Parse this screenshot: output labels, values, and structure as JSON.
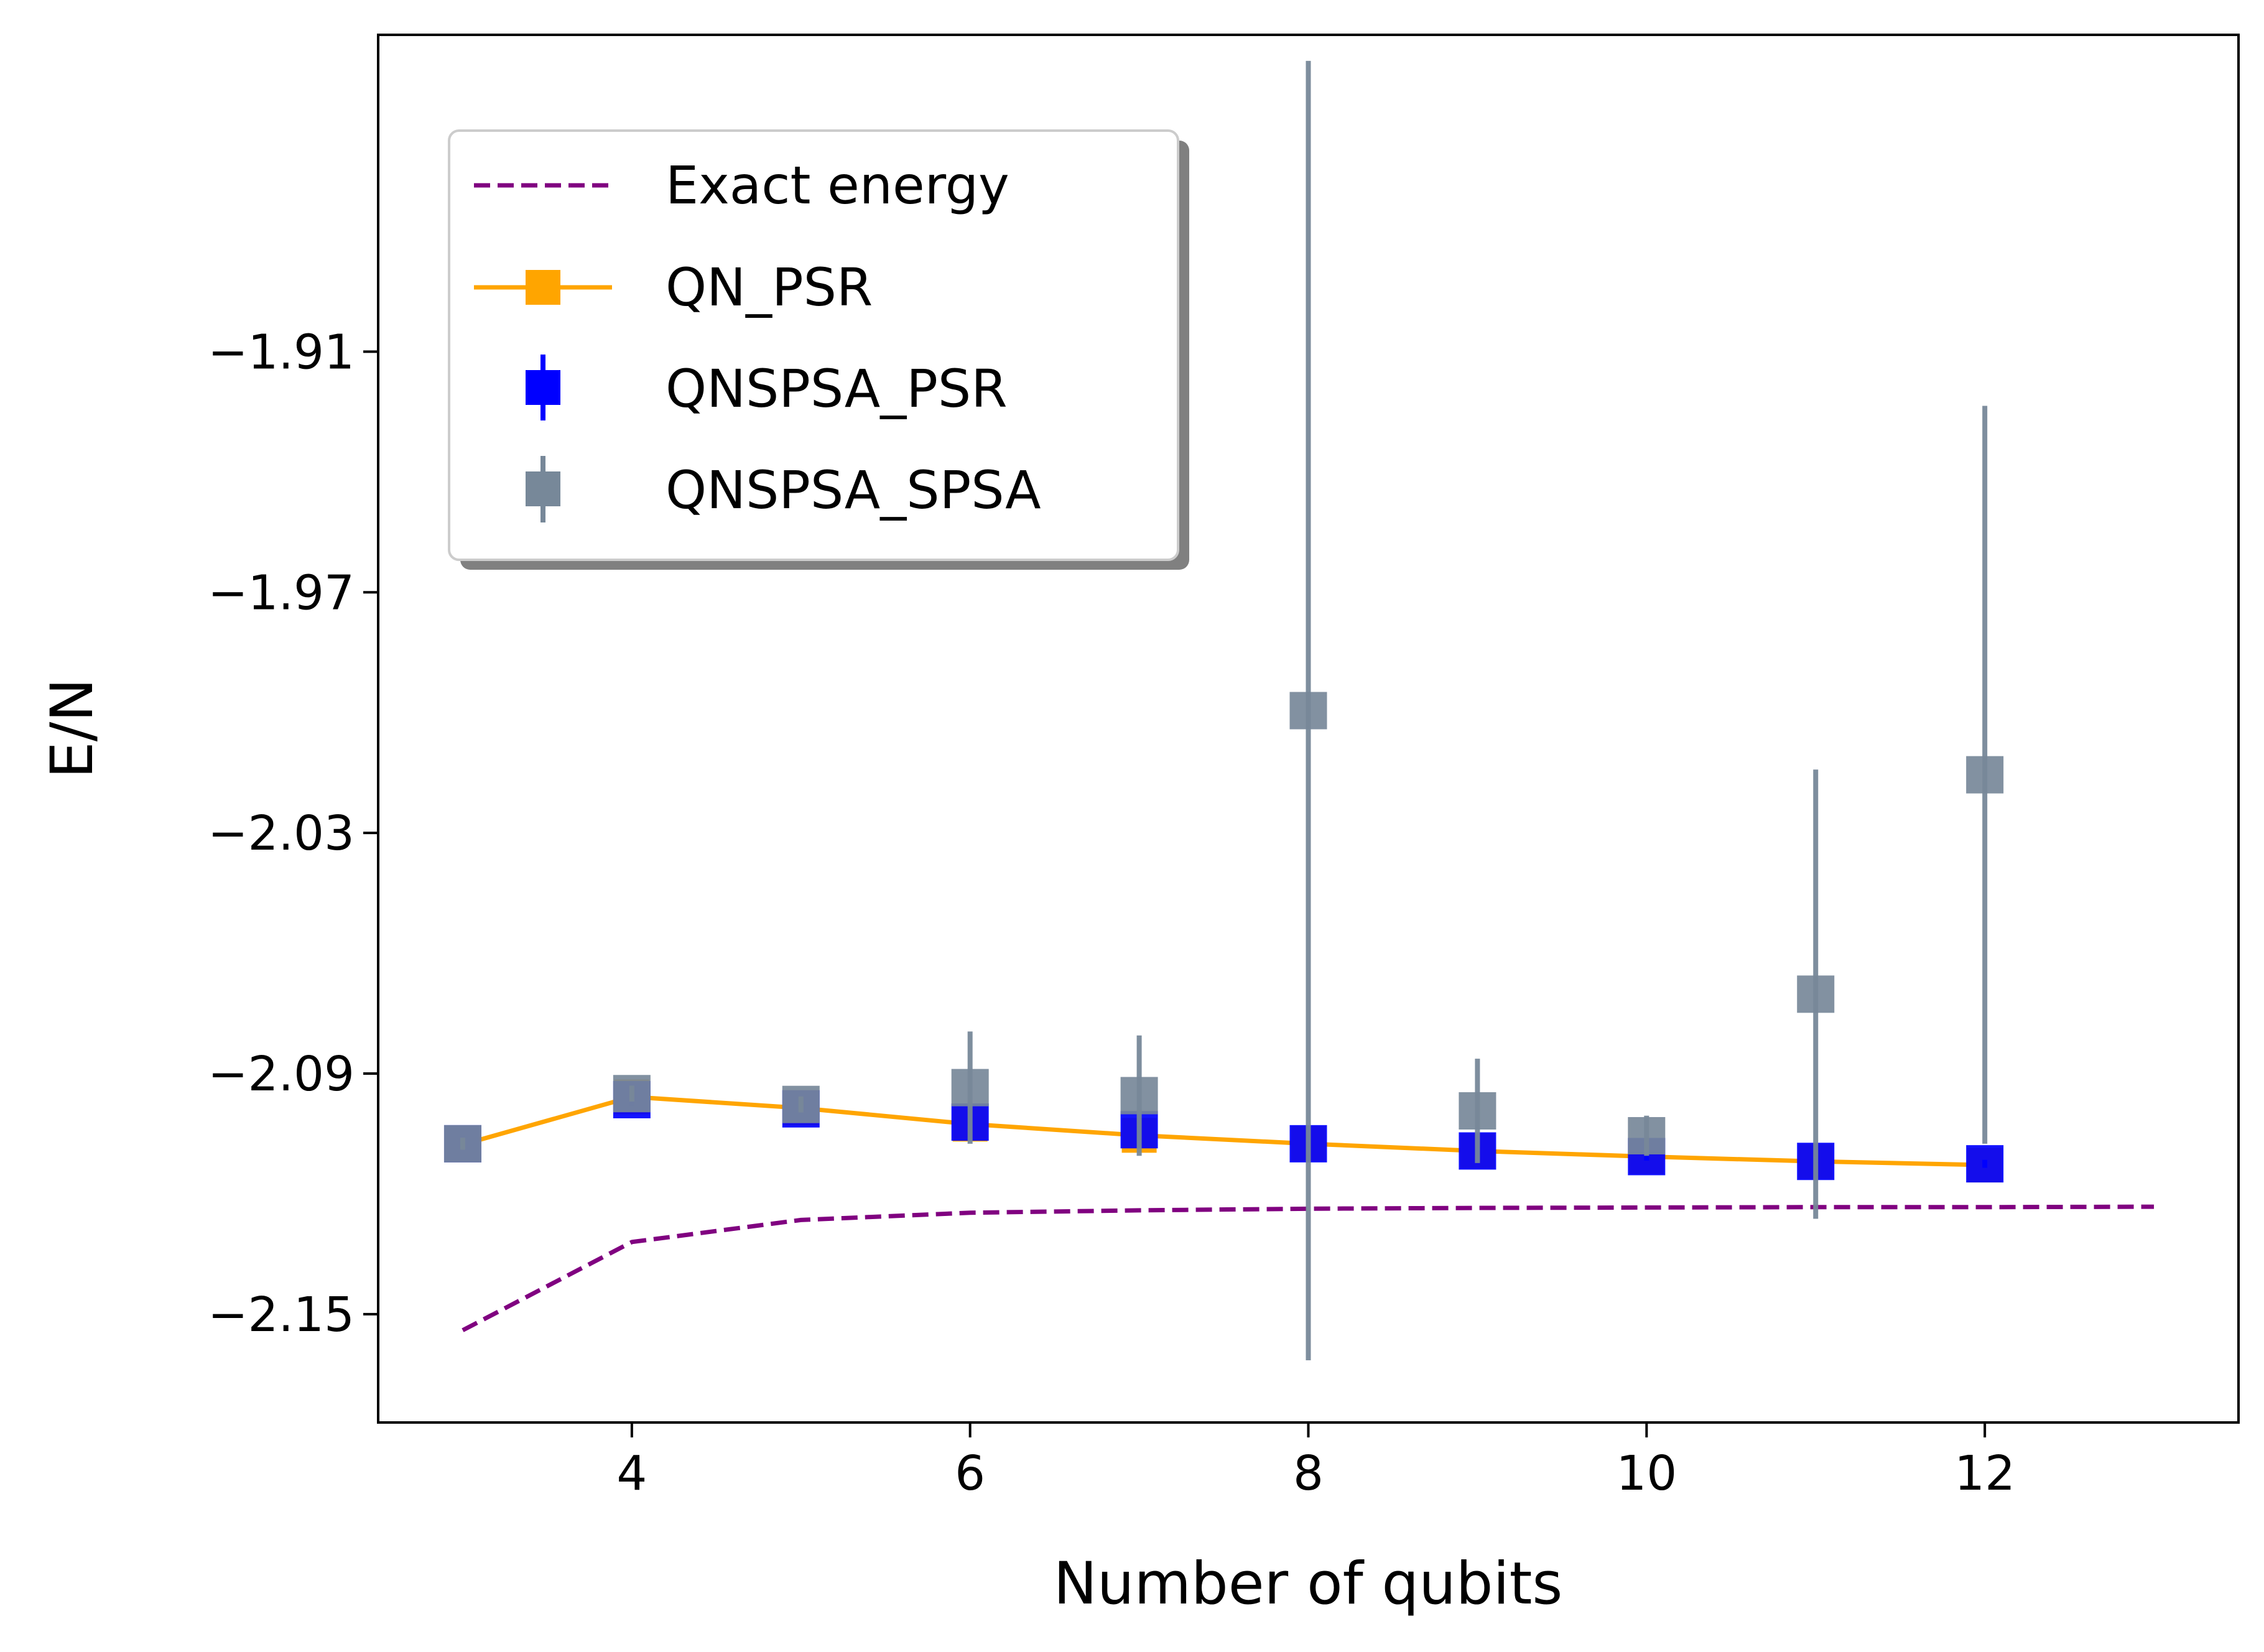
{
  "chart_data": {
    "type": "line",
    "title": "",
    "xlabel": "Number of qubits",
    "ylabel": "E/N",
    "xlim": [
      2.5,
      13.5
    ],
    "ylim": [
      -2.177,
      -1.831
    ],
    "x_ticks": [
      4,
      6,
      8,
      10,
      12
    ],
    "x_tick_labels": [
      "4",
      "6",
      "8",
      "10",
      "12"
    ],
    "y_ticks": [
      -1.91,
      -1.97,
      -2.03,
      -2.09,
      -2.15
    ],
    "y_tick_labels": [
      "−1.91",
      "−1.97",
      "−2.03",
      "−2.09",
      "−2.15"
    ],
    "grid": false,
    "legend_position": "upper-left",
    "series": [
      {
        "name": "Exact energy",
        "style": "dashed-line",
        "color": "#800080",
        "x": [
          3,
          4,
          5,
          6,
          7,
          8,
          9,
          10,
          11,
          12,
          13
        ],
        "y": [
          -2.154,
          -2.132,
          -2.1265,
          -2.1247,
          -2.1241,
          -2.1237,
          -2.1235,
          -2.1234,
          -2.1233,
          -2.1233,
          -2.1232
        ]
      },
      {
        "name": "QN_PSR",
        "style": "line-square-marker",
        "color": "#FFA500",
        "x": [
          3,
          4,
          5,
          6,
          7,
          8,
          9,
          10,
          11,
          12
        ],
        "y": [
          -2.1077,
          -2.0958,
          -2.0986,
          -2.1026,
          -2.1054,
          -2.1075,
          -2.1093,
          -2.1107,
          -2.1119,
          -2.1128
        ]
      },
      {
        "name": "QNSPSA_PSR",
        "style": "errorbar-square",
        "color": "#0000FF",
        "x": [
          3,
          4,
          5,
          6,
          7,
          8,
          9,
          10,
          11,
          12
        ],
        "y": [
          -2.1075,
          -2.0965,
          -2.0988,
          -2.1021,
          -2.104,
          -2.1075,
          -2.1093,
          -2.1107,
          -2.1119,
          -2.1125
        ],
        "yerr": [
          0.001,
          0.0015,
          0.001,
          0.001,
          0.001,
          0.001,
          0.001,
          0.001,
          0.001,
          0.001
        ]
      },
      {
        "name": "QNSPSA_SPSA",
        "style": "errorbar-square",
        "color": "#778899",
        "x": [
          3,
          4,
          5,
          6,
          7,
          8,
          9,
          10,
          11,
          12
        ],
        "y": [
          -2.1075,
          -2.095,
          -2.0977,
          -2.0935,
          -2.0955,
          -1.9995,
          -2.0993,
          -2.1055,
          -2.0702,
          -2.0155
        ],
        "yerr": [
          0.0015,
          0.002,
          0.002,
          0.014,
          0.015,
          0.162,
          0.013,
          0.005,
          0.056,
          0.092
        ]
      }
    ]
  },
  "colors": {
    "exact": "#800080",
    "qn_psr": "#FFA500",
    "qnspsa_psr": "#0000FF",
    "qnspsa_spsa": "#778899"
  }
}
